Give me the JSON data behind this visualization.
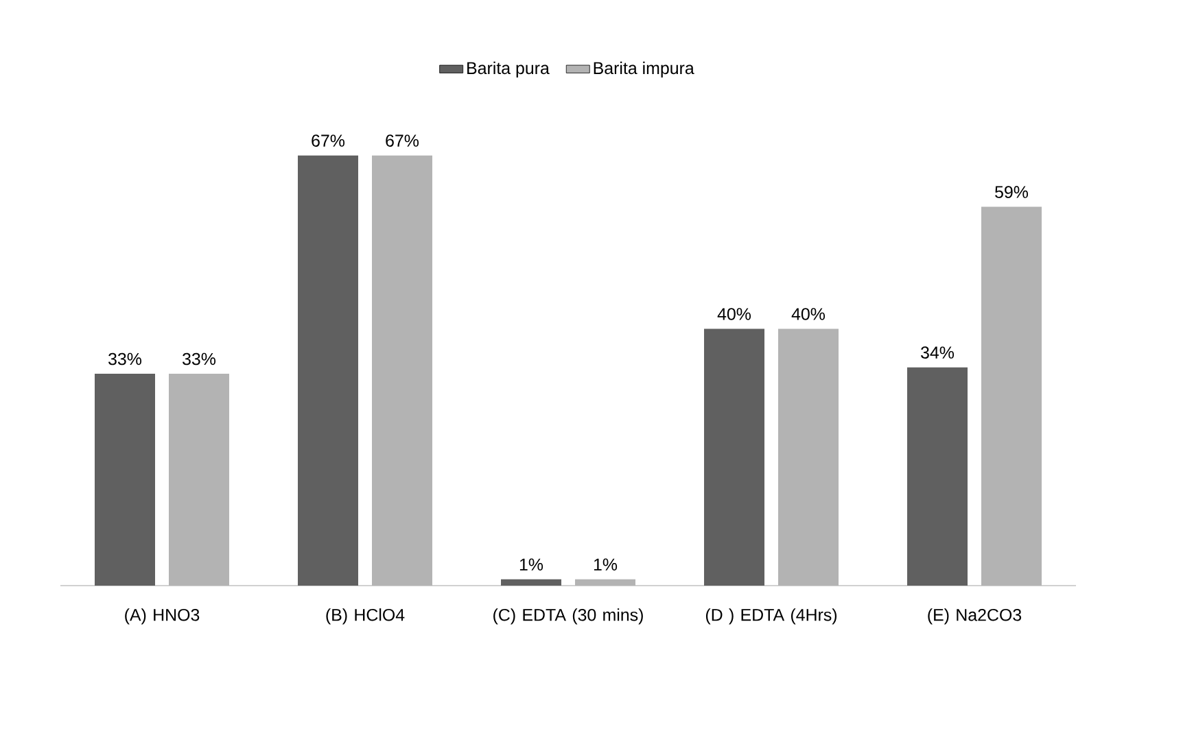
{
  "chart_data": {
    "type": "bar",
    "categories": [
      "(A) HNO3",
      "(B) HClO4",
      "(C) EDTA (30 mins)",
      "(D ) EDTA (4Hrs)",
      "(E) Na2CO3"
    ],
    "series": [
      {
        "name": "Barita pura",
        "color": "#606060",
        "values": [
          33,
          67,
          1,
          40,
          34
        ],
        "value_labels": [
          "33%",
          "67%",
          "1%",
          "40%",
          "34%"
        ]
      },
      {
        "name": "Barita impura",
        "color": "#b3b3b3",
        "values": [
          33,
          67,
          1,
          40,
          59
        ],
        "value_labels": [
          "33%",
          "67%",
          "1%",
          "40%",
          "59%"
        ]
      }
    ],
    "legend": "top"
  }
}
